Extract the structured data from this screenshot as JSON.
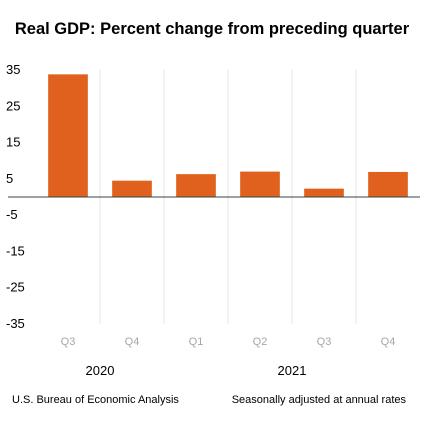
{
  "chart_data": {
    "type": "bar",
    "title": "Real GDP:  Percent change from preceding quarter",
    "categories": [
      "Q3",
      "Q4",
      "Q1",
      "Q2",
      "Q3",
      "Q4"
    ],
    "category_groups": [
      {
        "label": "2020",
        "categories": [
          "Q3",
          "Q4"
        ]
      },
      {
        "label": "2021",
        "categories": [
          "Q1",
          "Q2",
          "Q3",
          "Q4"
        ]
      }
    ],
    "values": [
      33.8,
      4.5,
      6.3,
      7.0,
      2.3,
      6.9
    ],
    "yticks": [
      35,
      25,
      15,
      5,
      -5,
      -15,
      -25,
      -35
    ],
    "ylim": [
      -35,
      35
    ],
    "xlabel": "",
    "ylabel": "",
    "grid": "vertical",
    "bar_color": "#e0601e",
    "source": "U.S. Bureau of Economic Analysis",
    "note": "Seasonally adjusted at annual rates"
  }
}
